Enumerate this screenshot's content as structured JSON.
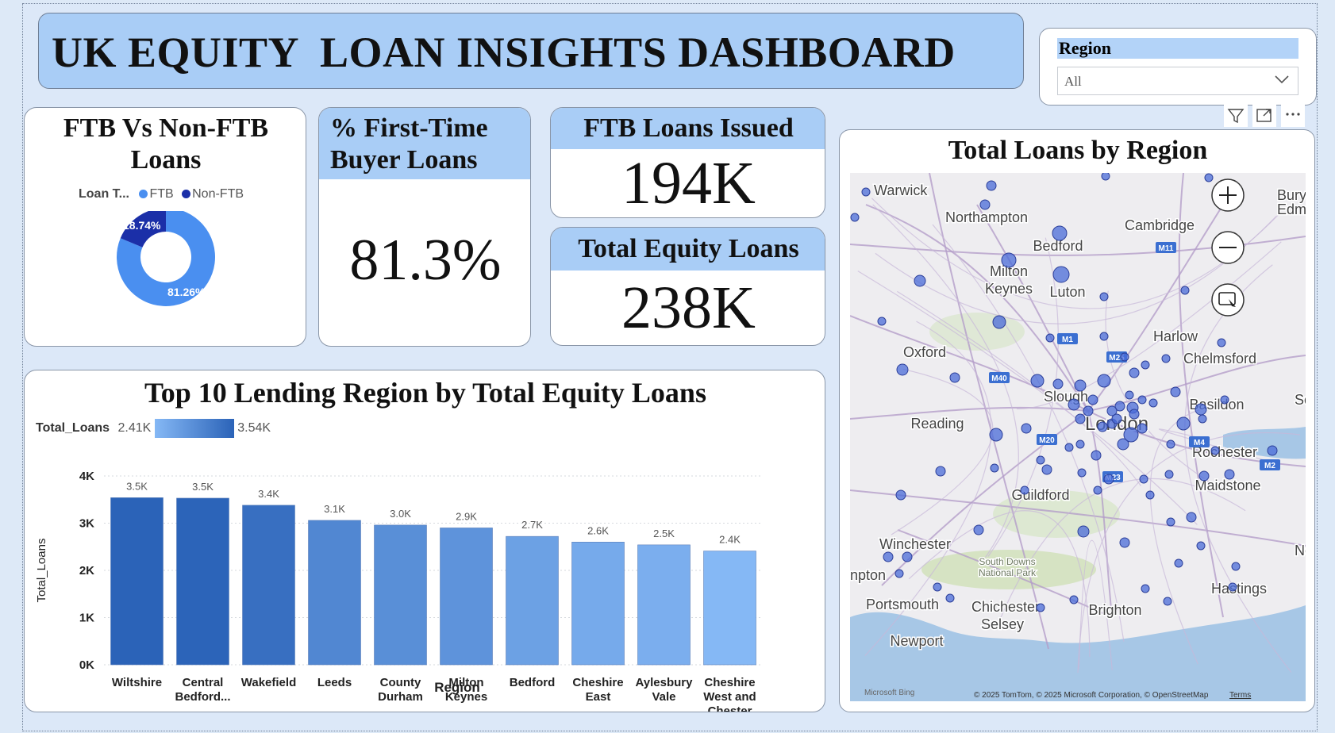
{
  "header": {
    "title": "UK EQUITY  LOAN INSIGHTS DASHBOARD"
  },
  "slicer": {
    "label": "Region",
    "value": "All"
  },
  "donut": {
    "title": "FTB Vs Non-FTB Loans",
    "legend_title": "Loan T...",
    "legend": [
      {
        "name": "FTB",
        "color": "#4a8ff0"
      },
      {
        "name": "Non-FTB",
        "color": "#1b2fa8"
      }
    ],
    "labels": {
      "non_ftb": "18.74%",
      "ftb": "81.26%"
    },
    "chart_data": {
      "type": "pie",
      "categories": [
        "FTB",
        "Non-FTB"
      ],
      "values": [
        81.26,
        18.74
      ]
    }
  },
  "kpi_pct": {
    "title": "% First-Time Buyer Loans",
    "value": "81.3%"
  },
  "kpi_ftb": {
    "title": "FTB Loans Issued",
    "value": "194K"
  },
  "kpi_total": {
    "title": "Total Equity Loans",
    "value": "238K"
  },
  "bar": {
    "title": "Top 10 Lending Region by Total Equity Loans",
    "legend_title": "Total_Loans",
    "legend_min": "2.41K",
    "legend_max": "3.54K",
    "xlabel": "Region",
    "ylabel": "Total_Loans",
    "y_ticks": [
      "0K",
      "1K",
      "2K",
      "3K",
      "4K"
    ],
    "cat_labels": [
      [
        "Wiltshire"
      ],
      [
        "Central",
        "Bedford..."
      ],
      [
        "Wakefield"
      ],
      [
        "Leeds"
      ],
      [
        "County",
        "Durham"
      ],
      [
        "Milton",
        "Keynes"
      ],
      [
        "Bedford"
      ],
      [
        "Cheshire",
        "East"
      ],
      [
        "Aylesbury",
        "Vale"
      ],
      [
        "Cheshire",
        "West and",
        "Chester"
      ]
    ],
    "value_labels": [
      "3.5K",
      "3.5K",
      "3.4K",
      "3.1K",
      "3.0K",
      "2.9K",
      "2.7K",
      "2.6K",
      "2.5K",
      "2.4K"
    ],
    "chart_data": {
      "type": "bar",
      "categories": [
        "Wiltshire",
        "Central Bedford...",
        "Wakefield",
        "Leeds",
        "County Durham",
        "Milton Keynes",
        "Bedford",
        "Cheshire East",
        "Aylesbury Vale",
        "Cheshire West and Chester"
      ],
      "values": [
        3540,
        3530,
        3380,
        3060,
        2960,
        2900,
        2720,
        2600,
        2540,
        2410
      ],
      "ylim": [
        0,
        4000
      ],
      "color_min": "#85b8f5",
      "color_max": "#2b63b8"
    }
  },
  "map": {
    "title": "Total Loans by Region",
    "attribution": "© 2025 TomTom, © 2025 Microsoft Corporation, © OpenStreetMap",
    "terms": "Terms",
    "brand": "Microsoft Bing",
    "places": [
      "Warwick",
      "Northampton",
      "Cambridge",
      "Bedford",
      "Milton",
      "Keynes",
      "Luton",
      "Oxford",
      "Harlow",
      "Chelmsford",
      "Slough",
      "Basildon",
      "Reading",
      "London",
      "Rochester",
      "Maidstone",
      "Guildford",
      "Winchester",
      "South Downs",
      "National Park",
      "Hastings",
      "Portsmouth",
      "Chichester",
      "Selsey",
      "Brighton",
      "Newport",
      "npton",
      "Bury S",
      "Edmun",
      "So",
      "Ne"
    ],
    "roads": [
      "M11",
      "M1",
      "M25",
      "M40",
      "M4",
      "M20",
      "M23",
      "M2"
    ]
  }
}
